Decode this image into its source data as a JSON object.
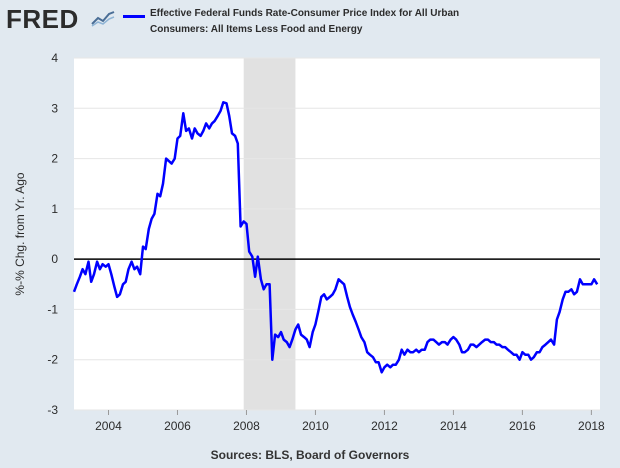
{
  "header": {
    "logo_text": "FRED",
    "legend_label": "Effective Federal Funds Rate-Consumer Price Index for All Urban Consumers: All Items Less Food and Energy"
  },
  "footer": {
    "source": "Sources: BLS, Board of Governors"
  },
  "colors": {
    "series": "#0000ff",
    "recession": "#e1e1e1",
    "background": "#e1e9f0",
    "plot": "#ffffff"
  },
  "chart_data": {
    "type": "line",
    "title": "",
    "xlabel": "",
    "ylabel": "%-% Chg. from Yr. Ago",
    "xlim": [
      2003.0,
      2018.25
    ],
    "ylim": [
      -3,
      4
    ],
    "yticks": [
      4,
      3,
      2,
      1,
      0,
      -1,
      -2,
      -3
    ],
    "xticks": [
      2004,
      2006,
      2008,
      2010,
      2012,
      2014,
      2016,
      2018
    ],
    "grid": "horizontal",
    "zero_line": true,
    "recession": [
      2007.92,
      2009.42
    ],
    "series": [
      {
        "name": "Effective Federal Funds Rate-Consumer Price Index for All Urban Consumers: All Items Less Food and Energy",
        "points": [
          [
            2003.0,
            -0.65
          ],
          [
            2003.08,
            -0.5
          ],
          [
            2003.17,
            -0.35
          ],
          [
            2003.25,
            -0.2
          ],
          [
            2003.33,
            -0.3
          ],
          [
            2003.42,
            -0.05
          ],
          [
            2003.5,
            -0.45
          ],
          [
            2003.58,
            -0.3
          ],
          [
            2003.67,
            -0.05
          ],
          [
            2003.75,
            -0.2
          ],
          [
            2003.83,
            -0.1
          ],
          [
            2003.92,
            -0.15
          ],
          [
            2004.0,
            -0.1
          ],
          [
            2004.08,
            -0.3
          ],
          [
            2004.17,
            -0.55
          ],
          [
            2004.25,
            -0.75
          ],
          [
            2004.33,
            -0.7
          ],
          [
            2004.42,
            -0.5
          ],
          [
            2004.5,
            -0.45
          ],
          [
            2004.58,
            -0.2
          ],
          [
            2004.67,
            -0.05
          ],
          [
            2004.75,
            -0.2
          ],
          [
            2004.83,
            -0.15
          ],
          [
            2004.92,
            -0.3
          ],
          [
            2005.0,
            0.25
          ],
          [
            2005.08,
            0.2
          ],
          [
            2005.17,
            0.6
          ],
          [
            2005.25,
            0.8
          ],
          [
            2005.33,
            0.9
          ],
          [
            2005.42,
            1.3
          ],
          [
            2005.5,
            1.25
          ],
          [
            2005.58,
            1.5
          ],
          [
            2005.67,
            2.0
          ],
          [
            2005.75,
            1.95
          ],
          [
            2005.83,
            1.9
          ],
          [
            2005.92,
            2.0
          ],
          [
            2006.0,
            2.4
          ],
          [
            2006.08,
            2.45
          ],
          [
            2006.17,
            2.9
          ],
          [
            2006.25,
            2.55
          ],
          [
            2006.33,
            2.6
          ],
          [
            2006.42,
            2.4
          ],
          [
            2006.5,
            2.6
          ],
          [
            2006.58,
            2.5
          ],
          [
            2006.67,
            2.45
          ],
          [
            2006.75,
            2.55
          ],
          [
            2006.83,
            2.7
          ],
          [
            2006.92,
            2.6
          ],
          [
            2007.0,
            2.7
          ],
          [
            2007.08,
            2.75
          ],
          [
            2007.17,
            2.85
          ],
          [
            2007.25,
            2.95
          ],
          [
            2007.33,
            3.12
          ],
          [
            2007.42,
            3.1
          ],
          [
            2007.5,
            2.85
          ],
          [
            2007.58,
            2.5
          ],
          [
            2007.67,
            2.45
          ],
          [
            2007.75,
            2.3
          ],
          [
            2007.83,
            0.65
          ],
          [
            2007.92,
            0.75
          ],
          [
            2008.0,
            0.7
          ],
          [
            2008.08,
            0.15
          ],
          [
            2008.17,
            0.05
          ],
          [
            2008.25,
            -0.35
          ],
          [
            2008.33,
            0.05
          ],
          [
            2008.42,
            -0.4
          ],
          [
            2008.5,
            -0.6
          ],
          [
            2008.58,
            -0.5
          ],
          [
            2008.67,
            -0.5
          ],
          [
            2008.75,
            -2.0
          ],
          [
            2008.83,
            -1.5
          ],
          [
            2008.92,
            -1.55
          ],
          [
            2009.0,
            -1.45
          ],
          [
            2009.08,
            -1.6
          ],
          [
            2009.17,
            -1.65
          ],
          [
            2009.25,
            -1.75
          ],
          [
            2009.33,
            -1.6
          ],
          [
            2009.42,
            -1.4
          ],
          [
            2009.5,
            -1.3
          ],
          [
            2009.58,
            -1.5
          ],
          [
            2009.67,
            -1.55
          ],
          [
            2009.75,
            -1.6
          ],
          [
            2009.83,
            -1.75
          ],
          [
            2009.92,
            -1.45
          ],
          [
            2010.0,
            -1.3
          ],
          [
            2010.08,
            -1.05
          ],
          [
            2010.17,
            -0.75
          ],
          [
            2010.25,
            -0.7
          ],
          [
            2010.33,
            -0.8
          ],
          [
            2010.42,
            -0.75
          ],
          [
            2010.5,
            -0.7
          ],
          [
            2010.58,
            -0.6
          ],
          [
            2010.67,
            -0.4
          ],
          [
            2010.75,
            -0.45
          ],
          [
            2010.83,
            -0.5
          ],
          [
            2010.92,
            -0.75
          ],
          [
            2011.0,
            -0.95
          ],
          [
            2011.08,
            -1.1
          ],
          [
            2011.17,
            -1.25
          ],
          [
            2011.25,
            -1.4
          ],
          [
            2011.33,
            -1.55
          ],
          [
            2011.42,
            -1.65
          ],
          [
            2011.5,
            -1.85
          ],
          [
            2011.58,
            -1.9
          ],
          [
            2011.67,
            -1.95
          ],
          [
            2011.75,
            -2.05
          ],
          [
            2011.83,
            -2.05
          ],
          [
            2011.92,
            -2.25
          ],
          [
            2012.0,
            -2.15
          ],
          [
            2012.08,
            -2.1
          ],
          [
            2012.17,
            -2.15
          ],
          [
            2012.25,
            -2.1
          ],
          [
            2012.33,
            -2.1
          ],
          [
            2012.42,
            -2.0
          ],
          [
            2012.5,
            -1.8
          ],
          [
            2012.58,
            -1.9
          ],
          [
            2012.67,
            -1.8
          ],
          [
            2012.75,
            -1.85
          ],
          [
            2012.83,
            -1.85
          ],
          [
            2012.92,
            -1.8
          ],
          [
            2013.0,
            -1.85
          ],
          [
            2013.08,
            -1.8
          ],
          [
            2013.17,
            -1.8
          ],
          [
            2013.25,
            -1.65
          ],
          [
            2013.33,
            -1.6
          ],
          [
            2013.42,
            -1.6
          ],
          [
            2013.5,
            -1.65
          ],
          [
            2013.58,
            -1.7
          ],
          [
            2013.67,
            -1.65
          ],
          [
            2013.75,
            -1.65
          ],
          [
            2013.83,
            -1.7
          ],
          [
            2013.92,
            -1.6
          ],
          [
            2014.0,
            -1.55
          ],
          [
            2014.08,
            -1.6
          ],
          [
            2014.17,
            -1.7
          ],
          [
            2014.25,
            -1.85
          ],
          [
            2014.33,
            -1.85
          ],
          [
            2014.42,
            -1.8
          ],
          [
            2014.5,
            -1.7
          ],
          [
            2014.58,
            -1.7
          ],
          [
            2014.67,
            -1.75
          ],
          [
            2014.75,
            -1.7
          ],
          [
            2014.83,
            -1.65
          ],
          [
            2014.92,
            -1.6
          ],
          [
            2015.0,
            -1.6
          ],
          [
            2015.08,
            -1.65
          ],
          [
            2015.17,
            -1.65
          ],
          [
            2015.25,
            -1.7
          ],
          [
            2015.33,
            -1.7
          ],
          [
            2015.42,
            -1.75
          ],
          [
            2015.5,
            -1.75
          ],
          [
            2015.58,
            -1.8
          ],
          [
            2015.67,
            -1.85
          ],
          [
            2015.75,
            -1.9
          ],
          [
            2015.83,
            -1.9
          ],
          [
            2015.92,
            -2.0
          ],
          [
            2016.0,
            -1.85
          ],
          [
            2016.08,
            -1.9
          ],
          [
            2016.17,
            -1.9
          ],
          [
            2016.25,
            -2.0
          ],
          [
            2016.33,
            -1.95
          ],
          [
            2016.42,
            -1.85
          ],
          [
            2016.5,
            -1.85
          ],
          [
            2016.58,
            -1.75
          ],
          [
            2016.67,
            -1.7
          ],
          [
            2016.75,
            -1.65
          ],
          [
            2016.83,
            -1.6
          ],
          [
            2016.92,
            -1.7
          ],
          [
            2017.0,
            -1.2
          ],
          [
            2017.08,
            -1.05
          ],
          [
            2017.17,
            -0.8
          ],
          [
            2017.25,
            -0.65
          ],
          [
            2017.33,
            -0.65
          ],
          [
            2017.42,
            -0.6
          ],
          [
            2017.5,
            -0.7
          ],
          [
            2017.58,
            -0.65
          ],
          [
            2017.67,
            -0.4
          ],
          [
            2017.75,
            -0.5
          ],
          [
            2017.83,
            -0.5
          ],
          [
            2017.92,
            -0.5
          ],
          [
            2018.0,
            -0.5
          ],
          [
            2018.08,
            -0.4
          ],
          [
            2018.17,
            -0.5
          ]
        ]
      }
    ]
  }
}
